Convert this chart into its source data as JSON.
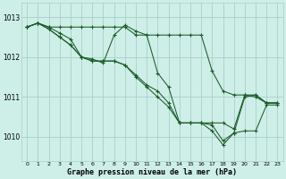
{
  "background_color": "#ceeee8",
  "grid_color": "#aacfca",
  "line_color": "#1a5c28",
  "xlabel": "Graphe pression niveau de la mer (hPa)",
  "xlim": [
    -0.5,
    23.5
  ],
  "ylim": [
    1009.4,
    1013.35
  ],
  "yticks": [
    1010,
    1011,
    1012,
    1013
  ],
  "xticks": [
    0,
    1,
    2,
    3,
    4,
    5,
    6,
    7,
    8,
    9,
    10,
    11,
    12,
    13,
    14,
    15,
    16,
    17,
    18,
    19,
    20,
    21,
    22,
    23
  ],
  "series": [
    [
      1012.75,
      1012.85,
      1012.75,
      1012.75,
      1012.75,
      1012.75,
      1012.75,
      1012.75,
      1012.75,
      1012.75,
      1012.55,
      1012.55,
      1012.55,
      1012.55,
      1012.55,
      1012.55,
      1012.55,
      1011.65,
      1011.15,
      1011.05,
      1011.05,
      1011.05,
      1010.85,
      1010.85
    ],
    [
      1012.75,
      1012.85,
      1012.75,
      1012.6,
      1012.45,
      1012.0,
      1011.95,
      1011.85,
      1012.55,
      1012.8,
      1012.65,
      1012.55,
      1011.6,
      1011.25,
      1010.35,
      1010.35,
      1010.35,
      1010.35,
      1010.35,
      1010.2,
      1011.05,
      1011.0,
      1010.85,
      1010.85
    ],
    [
      1012.75,
      1012.85,
      1012.7,
      1012.5,
      1012.3,
      1012.0,
      1011.9,
      1011.9,
      1011.9,
      1011.8,
      1011.55,
      1011.3,
      1011.15,
      1010.85,
      1010.35,
      1010.35,
      1010.35,
      1010.3,
      1009.9,
      1010.1,
      1011.0,
      1011.05,
      1010.85,
      1010.85
    ],
    [
      1012.75,
      1012.85,
      1012.7,
      1012.5,
      1012.3,
      1012.0,
      1011.9,
      1011.9,
      1011.9,
      1011.8,
      1011.5,
      1011.25,
      1011.0,
      1010.75,
      1010.35,
      1010.35,
      1010.35,
      1010.15,
      1009.8,
      1010.1,
      1010.15,
      1010.15,
      1010.8,
      1010.8
    ]
  ]
}
